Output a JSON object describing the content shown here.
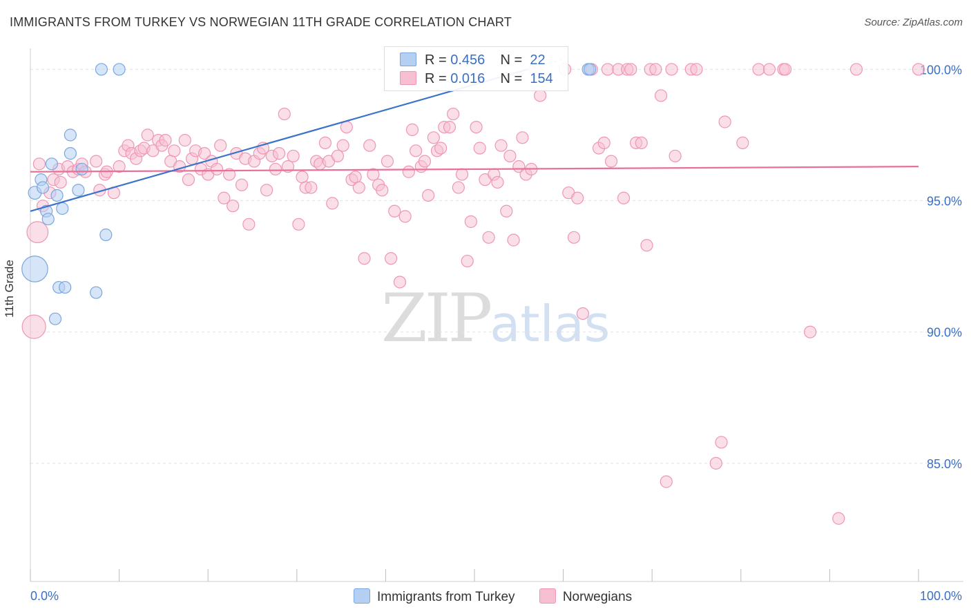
{
  "header": {
    "title": "IMMIGRANTS FROM TURKEY VS NORWEGIAN 11TH GRADE CORRELATION CHART",
    "source": "Source: ZipAtlas.com"
  },
  "watermark": {
    "zip": "ZIP",
    "atlas": "atlas"
  },
  "colors": {
    "blue": "#3a73c9",
    "blue_fill": "#b5cff3",
    "pink": "#e8709a",
    "pink_fill": "#f7c0d2",
    "grid": "#e2e2e2",
    "tick_label": "#3a6fc4"
  },
  "legend": {
    "rows": [
      {
        "r_label": "R =",
        "r_value": "0.456",
        "n_label": "N =",
        "n_value": "22",
        "color": "#b5cff3",
        "edge": "#7aa6e0"
      },
      {
        "r_label": "R =",
        "r_value": "0.016",
        "n_label": "N =",
        "n_value": "154",
        "color": "#f7c0d2",
        "edge": "#ee96b4"
      }
    ]
  },
  "bottom_legend": {
    "items": [
      "Immigrants from Turkey",
      "Norwegians"
    ]
  },
  "chart_data": {
    "type": "scatter",
    "title": "IMMIGRANTS FROM TURKEY VS NORWEGIAN 11TH GRADE CORRELATION CHART",
    "xlabel": "",
    "ylabel": "11th Grade",
    "xlim": [
      0,
      100
    ],
    "ylim": [
      80.5,
      100.8
    ],
    "x_tick_labels": [
      "0.0%",
      "100.0%"
    ],
    "y_ticks": [
      85,
      90,
      95,
      100
    ],
    "y_tick_labels": [
      "85.0%",
      "90.0%",
      "95.0%",
      "100.0%"
    ],
    "grid": true,
    "series": [
      {
        "name": "Immigrants from Turkey",
        "r": 0.456,
        "n": 22,
        "trend": {
          "x": [
            0,
            56
          ],
          "y": [
            94.6,
            100.0
          ]
        },
        "points": [
          [
            8,
            100
          ],
          [
            10,
            100
          ],
          [
            0.5,
            92.4
          ],
          [
            0.5,
            95.3
          ],
          [
            1.2,
            95.8
          ],
          [
            1.4,
            95.5
          ],
          [
            1.8,
            94.6
          ],
          [
            2.0,
            94.3
          ],
          [
            2.4,
            96.4
          ],
          [
            3.0,
            95.2
          ],
          [
            3.6,
            94.7
          ],
          [
            4.5,
            97.5
          ],
          [
            4.5,
            96.8
          ],
          [
            5.4,
            95.4
          ],
          [
            5.8,
            96.2
          ],
          [
            8.5,
            93.7
          ],
          [
            3.2,
            91.7
          ],
          [
            3.9,
            91.7
          ],
          [
            7.4,
            91.5
          ],
          [
            2.8,
            90.5
          ],
          [
            62.8,
            100
          ],
          [
            63.0,
            100
          ]
        ],
        "sizes": [
          1,
          1,
          2.2,
          1.1,
          1,
          1,
          1,
          1,
          1,
          1,
          1,
          1,
          1,
          1,
          1,
          1,
          1,
          1,
          1,
          1,
          1,
          1
        ]
      },
      {
        "name": "Norwegians",
        "r": 0.016,
        "n": 154,
        "trend": {
          "x": [
            0,
            100
          ],
          "y": [
            96.1,
            96.3
          ]
        },
        "points": [
          [
            0.4,
            90.2
          ],
          [
            0.8,
            93.8
          ],
          [
            1.4,
            94.8
          ],
          [
            2.2,
            95.3
          ],
          [
            2.6,
            95.8
          ],
          [
            3.2,
            96.2
          ],
          [
            3.4,
            95.7
          ],
          [
            4.2,
            96.3
          ],
          [
            4.8,
            96.1
          ],
          [
            5.4,
            96.2
          ],
          [
            5.8,
            96.4
          ],
          [
            6.2,
            96.1
          ],
          [
            7.4,
            96.5
          ],
          [
            7.8,
            95.4
          ],
          [
            8.4,
            96.0
          ],
          [
            8.6,
            96.1
          ],
          [
            9.4,
            95.3
          ],
          [
            10.0,
            96.3
          ],
          [
            10.6,
            96.9
          ],
          [
            11.0,
            97.1
          ],
          [
            11.4,
            96.8
          ],
          [
            11.9,
            96.6
          ],
          [
            12.4,
            96.9
          ],
          [
            12.8,
            97.0
          ],
          [
            13.2,
            97.5
          ],
          [
            13.8,
            96.9
          ],
          [
            14.4,
            97.3
          ],
          [
            14.8,
            97.1
          ],
          [
            15.2,
            97.3
          ],
          [
            15.8,
            96.5
          ],
          [
            16.2,
            96.9
          ],
          [
            16.8,
            96.3
          ],
          [
            17.4,
            97.3
          ],
          [
            17.8,
            95.8
          ],
          [
            18.2,
            96.6
          ],
          [
            18.6,
            96.9
          ],
          [
            19.2,
            96.2
          ],
          [
            19.6,
            96.8
          ],
          [
            20.0,
            96.0
          ],
          [
            20.4,
            96.5
          ],
          [
            21.0,
            96.2
          ],
          [
            21.4,
            97.1
          ],
          [
            21.8,
            95.1
          ],
          [
            22.4,
            96.0
          ],
          [
            22.8,
            94.8
          ],
          [
            23.2,
            96.8
          ],
          [
            23.8,
            95.6
          ],
          [
            24.2,
            96.6
          ],
          [
            24.6,
            94.1
          ],
          [
            25.2,
            96.5
          ],
          [
            25.8,
            96.8
          ],
          [
            26.2,
            97.0
          ],
          [
            26.6,
            95.4
          ],
          [
            27.2,
            96.7
          ],
          [
            27.6,
            96.2
          ],
          [
            28.0,
            96.8
          ],
          [
            28.6,
            98.3
          ],
          [
            29.0,
            96.3
          ],
          [
            29.6,
            96.7
          ],
          [
            30.2,
            94.1
          ],
          [
            30.6,
            95.9
          ],
          [
            31.0,
            95.5
          ],
          [
            31.6,
            95.5
          ],
          [
            32.2,
            96.5
          ],
          [
            32.6,
            96.4
          ],
          [
            33.2,
            97.2
          ],
          [
            33.6,
            96.5
          ],
          [
            34.0,
            94.9
          ],
          [
            34.6,
            96.7
          ],
          [
            35.2,
            97.1
          ],
          [
            35.6,
            97.8
          ],
          [
            36.2,
            95.8
          ],
          [
            36.6,
            95.9
          ],
          [
            37.0,
            95.5
          ],
          [
            37.6,
            92.8
          ],
          [
            38.2,
            97.1
          ],
          [
            38.6,
            96.0
          ],
          [
            39.2,
            95.6
          ],
          [
            39.6,
            95.4
          ],
          [
            40.2,
            96.5
          ],
          [
            40.6,
            92.8
          ],
          [
            41.0,
            94.6
          ],
          [
            41.6,
            91.9
          ],
          [
            42.2,
            94.4
          ],
          [
            42.6,
            96.1
          ],
          [
            43.0,
            97.7
          ],
          [
            43.4,
            96.9
          ],
          [
            44.0,
            96.3
          ],
          [
            44.4,
            96.5
          ],
          [
            44.8,
            95.2
          ],
          [
            45.4,
            97.4
          ],
          [
            45.8,
            96.9
          ],
          [
            46.2,
            97.0
          ],
          [
            46.6,
            97.8
          ],
          [
            47.2,
            97.8
          ],
          [
            47.6,
            98.3
          ],
          [
            48.2,
            95.5
          ],
          [
            48.6,
            96.0
          ],
          [
            49.2,
            92.7
          ],
          [
            49.6,
            94.2
          ],
          [
            50.2,
            97.8
          ],
          [
            50.6,
            97.0
          ],
          [
            51.2,
            95.8
          ],
          [
            51.6,
            93.6
          ],
          [
            52.2,
            96.0
          ],
          [
            52.6,
            95.7
          ],
          [
            53.0,
            97.1
          ],
          [
            53.6,
            94.6
          ],
          [
            54.0,
            96.7
          ],
          [
            54.4,
            93.5
          ],
          [
            55.0,
            96.3
          ],
          [
            55.4,
            97.4
          ],
          [
            55.8,
            96.0
          ],
          [
            56.4,
            96.2
          ],
          [
            56.8,
            100
          ],
          [
            57.4,
            99.0
          ],
          [
            60.2,
            100
          ],
          [
            60.6,
            95.3
          ],
          [
            61.2,
            93.6
          ],
          [
            61.6,
            95.1
          ],
          [
            62.2,
            90.7
          ],
          [
            63.2,
            100
          ],
          [
            64.0,
            97.0
          ],
          [
            64.6,
            97.2
          ],
          [
            65.0,
            100
          ],
          [
            65.4,
            96.5
          ],
          [
            66.2,
            100
          ],
          [
            66.8,
            95.1
          ],
          [
            67.2,
            100
          ],
          [
            67.6,
            100
          ],
          [
            68.2,
            97.2
          ],
          [
            68.8,
            97.2
          ],
          [
            69.4,
            93.3
          ],
          [
            69.8,
            100
          ],
          [
            70.4,
            100
          ],
          [
            71.0,
            99.0
          ],
          [
            71.6,
            84.3
          ],
          [
            72.2,
            100
          ],
          [
            72.6,
            96.7
          ],
          [
            74.4,
            100
          ],
          [
            77.2,
            85.0
          ],
          [
            77.8,
            85.8
          ],
          [
            78.2,
            98.0
          ],
          [
            80.2,
            97.2
          ],
          [
            82.0,
            100
          ],
          [
            83.2,
            100
          ],
          [
            84.8,
            100
          ],
          [
            85.0,
            100
          ],
          [
            87.8,
            90.0
          ],
          [
            91.0,
            82.9
          ],
          [
            93.0,
            100
          ],
          [
            100.0,
            100
          ],
          [
            1.0,
            96.4
          ],
          [
            75.0,
            100
          ]
        ],
        "sizes": [
          2.0,
          1.8
        ]
      }
    ]
  }
}
